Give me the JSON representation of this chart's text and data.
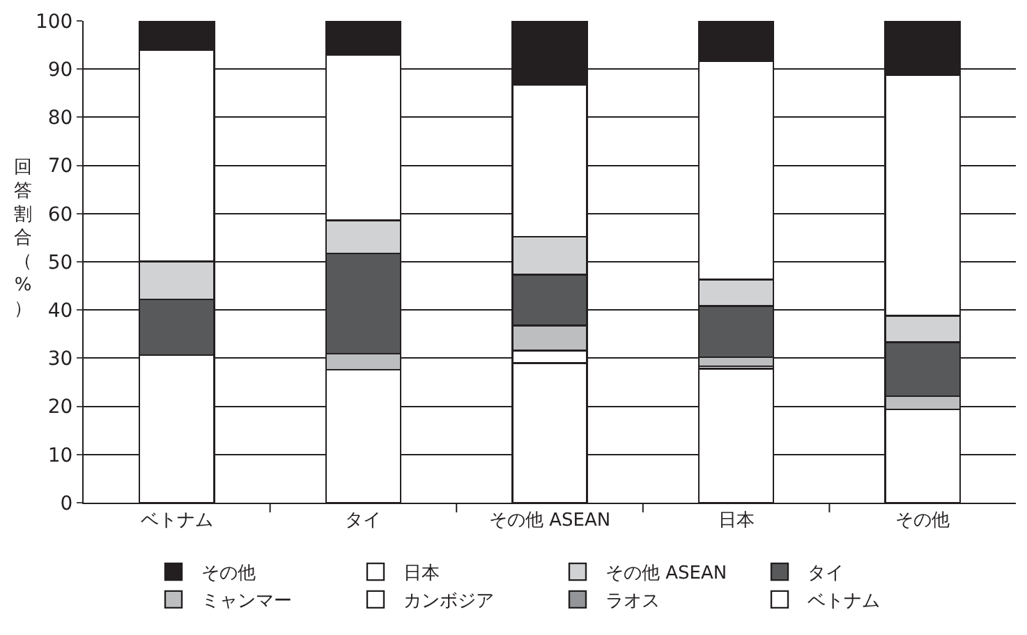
{
  "chart_data": {
    "type": "bar",
    "stacked": true,
    "ylabel": "回答割合（%）",
    "categories": [
      "ベトナム",
      "タイ",
      "その他 ASEAN",
      "日本",
      "その他"
    ],
    "series": [
      {
        "name": "ベトナム",
        "color": "#ffffff",
        "values": [
          30.6,
          27.6,
          29.0,
          27.8,
          19.4
        ]
      },
      {
        "name": "ラオス",
        "color": "#939598",
        "values": [
          0,
          0,
          0,
          0,
          0
        ]
      },
      {
        "name": "カンボジア",
        "color": "#ffffff",
        "values": [
          0,
          0,
          2.6,
          0.5,
          0
        ]
      },
      {
        "name": "ミャンマー",
        "color": "#bcbec0",
        "values": [
          0,
          3.3,
          5.2,
          1.9,
          2.7
        ]
      },
      {
        "name": "タイ",
        "color": "#58595b",
        "values": [
          11.6,
          20.8,
          10.5,
          10.6,
          11.2
        ]
      },
      {
        "name": "その他 ASEAN",
        "color": "#d1d2d4",
        "values": [
          7.9,
          6.9,
          7.9,
          5.5,
          5.5
        ]
      },
      {
        "name": "日本",
        "color": "#ffffff",
        "values": [
          43.9,
          34.4,
          31.5,
          45.4,
          50.0
        ]
      },
      {
        "name": "その他",
        "color": "#231f20",
        "values": [
          6.0,
          7.0,
          13.3,
          8.3,
          11.2
        ]
      }
    ],
    "ylim": [
      0,
      100
    ],
    "yticks": [
      0,
      10,
      20,
      30,
      40,
      50,
      60,
      70,
      80,
      90,
      100
    ],
    "grid": "y",
    "legend": "bottom"
  }
}
